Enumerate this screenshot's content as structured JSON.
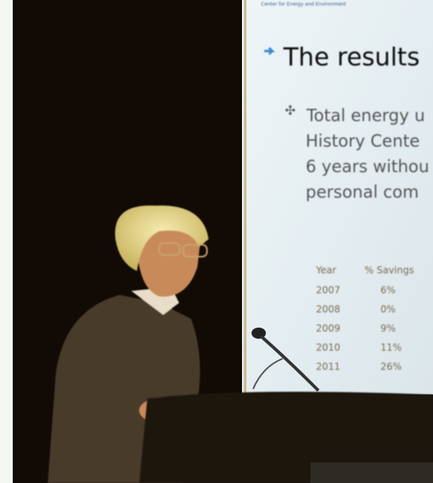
{
  "slide": {
    "header": "Center for Energy and Environment",
    "title": "The results",
    "bullet_lines": [
      "Total energy u",
      "History Cente",
      "6 years withou",
      "personal com"
    ],
    "table": {
      "header": [
        "Year",
        "% Savings"
      ],
      "rows": [
        [
          "2007",
          "6%"
        ],
        [
          "2008",
          "0%"
        ],
        [
          "2009",
          "9%"
        ],
        [
          "2010",
          "11%"
        ],
        [
          "2011",
          "26%"
        ]
      ]
    }
  }
}
